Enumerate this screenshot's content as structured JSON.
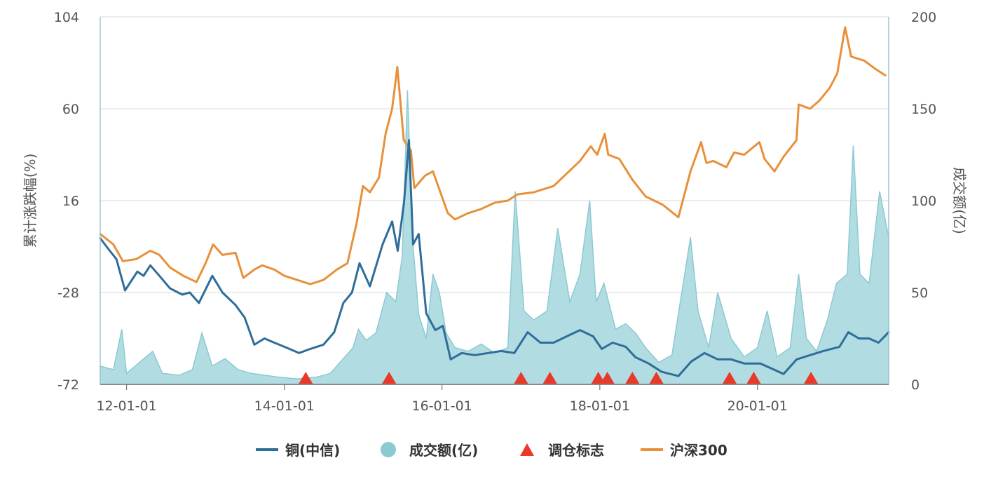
{
  "chart_data": {
    "type": "line",
    "title": "",
    "ylabel_left": "累计涨跌幅(%)",
    "ylabel_right": "成交额(亿)",
    "y_left_range": [
      -72,
      104
    ],
    "y_left_ticks": [
      "104",
      "60",
      "16",
      "-28",
      "-72"
    ],
    "y_right_range": [
      0,
      200
    ],
    "y_right_ticks": [
      "200",
      "150",
      "100",
      "50",
      "0"
    ],
    "x_range": [
      "2011-09-01",
      "2021-08-31"
    ],
    "x_ticks": [
      {
        "date": "2012-01-01",
        "label": "12-01-01"
      },
      {
        "date": "2014-01-01",
        "label": "14-01-01"
      },
      {
        "date": "2016-01-01",
        "label": "16-01-01"
      },
      {
        "date": "2018-01-01",
        "label": "18-01-01"
      },
      {
        "date": "2020-01-01",
        "label": "20-01-01"
      }
    ],
    "grid": "horizontal",
    "legend_position": "bottom-center",
    "legend": [
      {
        "key": "copper",
        "label": "铜(中信)",
        "marker": "line"
      },
      {
        "key": "volume",
        "label": "成交额(亿)",
        "marker": "circle"
      },
      {
        "key": "rebalance",
        "label": "调仓标志",
        "marker": "triangle"
      },
      {
        "key": "hs300",
        "label": "沪深300",
        "marker": "line"
      }
    ],
    "colors": {
      "copper": "#2f6d9a",
      "hs300": "#e8903a",
      "volume_fill": "#a8d8de",
      "volume_line": "#8ccad3",
      "rebalance": "#e8392a",
      "grid": "#e0e0e0",
      "axis": "#9fc5d0"
    },
    "series": [
      {
        "key": "hs300",
        "name": "沪深300",
        "axis": "left",
        "points": [
          [
            "2011-09-01",
            0
          ],
          [
            "2011-11-01",
            -5
          ],
          [
            "2011-12-15",
            -13
          ],
          [
            "2012-02-15",
            -12
          ],
          [
            "2012-04-20",
            -8
          ],
          [
            "2012-06-01",
            -10
          ],
          [
            "2012-07-20",
            -16
          ],
          [
            "2012-09-20",
            -20
          ],
          [
            "2012-11-20",
            -23
          ],
          [
            "2013-01-01",
            -14
          ],
          [
            "2013-02-05",
            -5
          ],
          [
            "2013-03-20",
            -10
          ],
          [
            "2013-05-20",
            -9
          ],
          [
            "2013-06-25",
            -21
          ],
          [
            "2013-08-15",
            -17
          ],
          [
            "2013-09-20",
            -15
          ],
          [
            "2013-11-15",
            -17
          ],
          [
            "2014-01-01",
            -20
          ],
          [
            "2014-03-01",
            -22
          ],
          [
            "2014-05-01",
            -24
          ],
          [
            "2014-07-01",
            -22
          ],
          [
            "2014-09-01",
            -17
          ],
          [
            "2014-10-20",
            -14
          ],
          [
            "2014-12-01",
            5
          ],
          [
            "2014-12-31",
            23
          ],
          [
            "2015-02-01",
            20
          ],
          [
            "2015-03-15",
            27
          ],
          [
            "2015-04-15",
            48
          ],
          [
            "2015-05-15",
            60
          ],
          [
            "2015-06-08",
            80
          ],
          [
            "2015-07-08",
            45
          ],
          [
            "2015-08-10",
            40
          ],
          [
            "2015-08-26",
            22
          ],
          [
            "2015-10-15",
            28
          ],
          [
            "2015-11-20",
            30
          ],
          [
            "2016-01-28",
            10
          ],
          [
            "2016-03-01",
            7
          ],
          [
            "2016-05-01",
            10
          ],
          [
            "2016-07-01",
            12
          ],
          [
            "2016-09-01",
            15
          ],
          [
            "2016-11-01",
            16
          ],
          [
            "2016-12-15",
            19
          ],
          [
            "2017-03-01",
            20
          ],
          [
            "2017-06-01",
            23
          ],
          [
            "2017-08-01",
            29
          ],
          [
            "2017-10-01",
            35
          ],
          [
            "2017-11-20",
            42
          ],
          [
            "2017-12-20",
            38
          ],
          [
            "2018-01-24",
            48
          ],
          [
            "2018-02-09",
            38
          ],
          [
            "2018-04-01",
            36
          ],
          [
            "2018-06-01",
            26
          ],
          [
            "2018-08-01",
            18
          ],
          [
            "2018-10-20",
            14
          ],
          [
            "2018-12-31",
            8
          ],
          [
            "2019-02-25",
            30
          ],
          [
            "2019-04-15",
            44
          ],
          [
            "2019-05-10",
            34
          ],
          [
            "2019-06-10",
            35
          ],
          [
            "2019-08-10",
            32
          ],
          [
            "2019-09-15",
            39
          ],
          [
            "2019-11-01",
            38
          ],
          [
            "2020-01-10",
            44
          ],
          [
            "2020-02-03",
            36
          ],
          [
            "2020-03-20",
            30
          ],
          [
            "2020-05-01",
            37
          ],
          [
            "2020-06-30",
            45
          ],
          [
            "2020-07-10",
            62
          ],
          [
            "2020-09-01",
            60
          ],
          [
            "2020-10-15",
            64
          ],
          [
            "2020-12-01",
            70
          ],
          [
            "2021-01-05",
            77
          ],
          [
            "2021-02-10",
            99
          ],
          [
            "2021-03-10",
            85
          ],
          [
            "2021-05-10",
            83
          ],
          [
            "2021-07-01",
            79
          ],
          [
            "2021-08-15",
            76
          ]
        ]
      },
      {
        "key": "copper",
        "name": "铜(中信)",
        "axis": "left",
        "points": [
          [
            "2011-09-01",
            -2
          ],
          [
            "2011-10-15",
            -8
          ],
          [
            "2011-11-15",
            -12
          ],
          [
            "2011-12-25",
            -27
          ],
          [
            "2012-02-20",
            -18
          ],
          [
            "2012-03-20",
            -20
          ],
          [
            "2012-04-20",
            -15
          ],
          [
            "2012-06-01",
            -20
          ],
          [
            "2012-07-20",
            -26
          ],
          [
            "2012-09-15",
            -29
          ],
          [
            "2012-10-20",
            -28
          ],
          [
            "2012-12-01",
            -33
          ],
          [
            "2013-02-01",
            -20
          ],
          [
            "2013-03-20",
            -28
          ],
          [
            "2013-05-20",
            -34
          ],
          [
            "2013-07-01",
            -40
          ],
          [
            "2013-08-15",
            -53
          ],
          [
            "2013-10-01",
            -50
          ],
          [
            "2013-11-15",
            -52
          ],
          [
            "2014-01-01",
            -54
          ],
          [
            "2014-03-10",
            -57
          ],
          [
            "2014-05-01",
            -55
          ],
          [
            "2014-07-01",
            -53
          ],
          [
            "2014-08-20",
            -47
          ],
          [
            "2014-10-01",
            -33
          ],
          [
            "2014-11-10",
            -28
          ],
          [
            "2014-12-15",
            -14
          ],
          [
            "2015-02-01",
            -25
          ],
          [
            "2015-04-01",
            -5
          ],
          [
            "2015-05-15",
            6
          ],
          [
            "2015-06-10",
            -8
          ],
          [
            "2015-07-09",
            15
          ],
          [
            "2015-08-01",
            45
          ],
          [
            "2015-08-20",
            -5
          ],
          [
            "2015-09-15",
            0
          ],
          [
            "2015-10-20",
            -38
          ],
          [
            "2015-12-01",
            -46
          ],
          [
            "2016-01-05",
            -44
          ],
          [
            "2016-02-10",
            -60
          ],
          [
            "2016-04-01",
            -57
          ],
          [
            "2016-06-01",
            -58
          ],
          [
            "2016-08-01",
            -57
          ],
          [
            "2016-10-01",
            -56
          ],
          [
            "2016-12-01",
            -57
          ],
          [
            "2017-02-01",
            -47
          ],
          [
            "2017-04-01",
            -52
          ],
          [
            "2017-06-01",
            -52
          ],
          [
            "2017-08-01",
            -49
          ],
          [
            "2017-10-01",
            -46
          ],
          [
            "2017-12-01",
            -49
          ],
          [
            "2018-01-10",
            -55
          ],
          [
            "2018-03-01",
            -52
          ],
          [
            "2018-05-01",
            -54
          ],
          [
            "2018-06-15",
            -59
          ],
          [
            "2018-08-15",
            -62
          ],
          [
            "2018-10-15",
            -66
          ],
          [
            "2018-12-31",
            -68
          ],
          [
            "2019-03-01",
            -61
          ],
          [
            "2019-05-01",
            -57
          ],
          [
            "2019-07-01",
            -60
          ],
          [
            "2019-09-01",
            -60
          ],
          [
            "2019-11-01",
            -62
          ],
          [
            "2020-01-15",
            -62
          ],
          [
            "2020-03-20",
            -65
          ],
          [
            "2020-05-01",
            -67
          ],
          [
            "2020-07-01",
            -60
          ],
          [
            "2020-09-01",
            -58
          ],
          [
            "2020-11-01",
            -56
          ],
          [
            "2021-01-15",
            -54
          ],
          [
            "2021-02-25",
            -47
          ],
          [
            "2021-04-15",
            -50
          ],
          [
            "2021-06-01",
            -50
          ],
          [
            "2021-07-15",
            -52
          ],
          [
            "2021-08-31",
            -47
          ]
        ]
      },
      {
        "key": "volume",
        "name": "成交额(亿)",
        "axis": "right",
        "points": [
          [
            "2011-09-01",
            10
          ],
          [
            "2011-11-01",
            8
          ],
          [
            "2011-12-10",
            30
          ],
          [
            "2012-01-01",
            6
          ],
          [
            "2012-03-01",
            12
          ],
          [
            "2012-05-01",
            18
          ],
          [
            "2012-06-15",
            6
          ],
          [
            "2012-09-01",
            5
          ],
          [
            "2012-11-01",
            8
          ],
          [
            "2012-12-15",
            28
          ],
          [
            "2013-02-01",
            10
          ],
          [
            "2013-04-01",
            14
          ],
          [
            "2013-06-01",
            8
          ],
          [
            "2013-08-01",
            6
          ],
          [
            "2013-10-01",
            5
          ],
          [
            "2013-12-01",
            4
          ],
          [
            "2014-03-01",
            3
          ],
          [
            "2014-06-01",
            4
          ],
          [
            "2014-08-01",
            6
          ],
          [
            "2014-10-01",
            14
          ],
          [
            "2014-11-15",
            20
          ],
          [
            "2014-12-10",
            30
          ],
          [
            "2015-01-15",
            24
          ],
          [
            "2015-03-01",
            28
          ],
          [
            "2015-04-20",
            50
          ],
          [
            "2015-06-01",
            45
          ],
          [
            "2015-07-01",
            70
          ],
          [
            "2015-07-25",
            160
          ],
          [
            "2015-08-20",
            75
          ],
          [
            "2015-09-15",
            38
          ],
          [
            "2015-10-20",
            25
          ],
          [
            "2015-11-20",
            60
          ],
          [
            "2015-12-20",
            50
          ],
          [
            "2016-01-20",
            28
          ],
          [
            "2016-03-01",
            20
          ],
          [
            "2016-05-01",
            18
          ],
          [
            "2016-07-01",
            22
          ],
          [
            "2016-09-01",
            17
          ],
          [
            "2016-11-01",
            20
          ],
          [
            "2016-12-05",
            105
          ],
          [
            "2017-01-15",
            40
          ],
          [
            "2017-03-01",
            35
          ],
          [
            "2017-05-01",
            40
          ],
          [
            "2017-06-20",
            85
          ],
          [
            "2017-08-15",
            45
          ],
          [
            "2017-10-01",
            60
          ],
          [
            "2017-11-15",
            100
          ],
          [
            "2017-12-15",
            45
          ],
          [
            "2018-01-20",
            55
          ],
          [
            "2018-03-15",
            30
          ],
          [
            "2018-05-01",
            33
          ],
          [
            "2018-06-15",
            28
          ],
          [
            "2018-08-01",
            20
          ],
          [
            "2018-10-01",
            12
          ],
          [
            "2018-12-01",
            16
          ],
          [
            "2019-02-25",
            80
          ],
          [
            "2019-04-01",
            40
          ],
          [
            "2019-05-20",
            20
          ],
          [
            "2019-07-01",
            50
          ],
          [
            "2019-09-01",
            25
          ],
          [
            "2019-11-01",
            15
          ],
          [
            "2020-01-01",
            20
          ],
          [
            "2020-02-15",
            40
          ],
          [
            "2020-04-01",
            15
          ],
          [
            "2020-06-01",
            20
          ],
          [
            "2020-07-10",
            60
          ],
          [
            "2020-08-15",
            25
          ],
          [
            "2020-10-01",
            18
          ],
          [
            "2020-11-20",
            35
          ],
          [
            "2021-01-01",
            55
          ],
          [
            "2021-02-20",
            60
          ],
          [
            "2021-03-20",
            130
          ],
          [
            "2021-04-20",
            60
          ],
          [
            "2021-06-01",
            55
          ],
          [
            "2021-07-20",
            105
          ],
          [
            "2021-08-31",
            80
          ]
        ]
      }
    ],
    "rebalance_markers": [
      "2014-04-10",
      "2015-05-01",
      "2017-01-01",
      "2017-05-15",
      "2017-12-25",
      "2018-02-05",
      "2018-06-01",
      "2018-09-20",
      "2019-08-25",
      "2019-12-15",
      "2020-09-05"
    ]
  }
}
